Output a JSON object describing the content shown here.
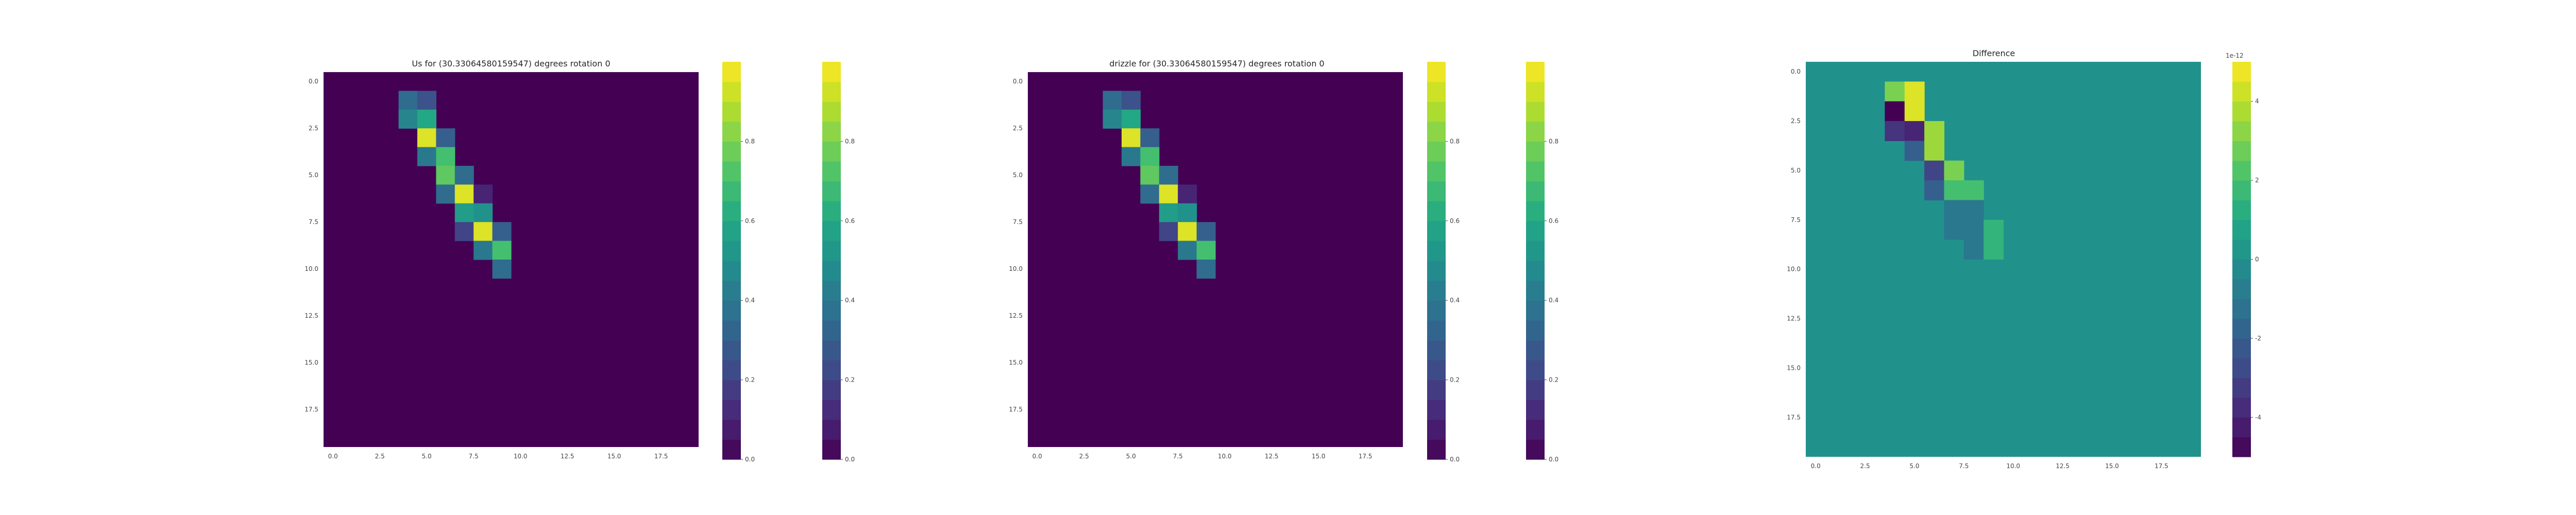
{
  "figure": {
    "panel_titles": [
      "Us for (30.33064580159547) degrees rotation 0",
      "drizzle for (30.33064580159547) degrees rotation 0",
      "Difference"
    ],
    "xtick_labels": [
      "0.0",
      "2.5",
      "5.0",
      "7.5",
      "10.0",
      "12.5",
      "15.0",
      "17.5"
    ],
    "ytick_labels": [
      "0.0",
      "2.5",
      "5.0",
      "7.5",
      "10.0",
      "12.5",
      "15.0",
      "17.5"
    ],
    "colorbar_ticks_main": [
      "0.0",
      "0.2",
      "0.4",
      "0.6",
      "0.8"
    ],
    "colorbar_ticks_diff": [
      "-4",
      "-2",
      "0",
      "2",
      "4"
    ],
    "colorbar_diff_exponent": "1e-12"
  },
  "colors": {
    "background": "#ffffff",
    "colormap": "viridis"
  },
  "chart_data": [
    {
      "type": "heatmap",
      "title": "Us for (30.33064580159547) degrees rotation 0",
      "grid_shape": [
        20,
        20
      ],
      "xlim": [
        -0.5,
        19.5
      ],
      "ylim": [
        19.5,
        -0.5
      ],
      "background_value": 0,
      "cells": [
        {
          "row": 1,
          "col": 4,
          "value": 0.35
        },
        {
          "row": 1,
          "col": 5,
          "value": 0.25
        },
        {
          "row": 2,
          "col": 4,
          "value": 0.45
        },
        {
          "row": 2,
          "col": 5,
          "value": 0.6
        },
        {
          "row": 3,
          "col": 5,
          "value": 0.95
        },
        {
          "row": 3,
          "col": 6,
          "value": 0.3
        },
        {
          "row": 4,
          "col": 5,
          "value": 0.4
        },
        {
          "row": 4,
          "col": 6,
          "value": 0.7
        },
        {
          "row": 5,
          "col": 6,
          "value": 0.75
        },
        {
          "row": 5,
          "col": 7,
          "value": 0.35
        },
        {
          "row": 6,
          "col": 6,
          "value": 0.35
        },
        {
          "row": 6,
          "col": 7,
          "value": 0.95
        },
        {
          "row": 6,
          "col": 8,
          "value": 0.1
        },
        {
          "row": 7,
          "col": 7,
          "value": 0.55
        },
        {
          "row": 7,
          "col": 8,
          "value": 0.5
        },
        {
          "row": 8,
          "col": 7,
          "value": 0.2
        },
        {
          "row": 8,
          "col": 8,
          "value": 0.95
        },
        {
          "row": 8,
          "col": 9,
          "value": 0.3
        },
        {
          "row": 9,
          "col": 8,
          "value": 0.4
        },
        {
          "row": 9,
          "col": 9,
          "value": 0.7
        },
        {
          "row": 10,
          "col": 9,
          "value": 0.35
        }
      ],
      "colorbar_ticks": [
        0.0,
        0.2,
        0.4,
        0.6,
        0.8
      ],
      "clim": [
        0,
        1
      ]
    },
    {
      "type": "heatmap",
      "title": "drizzle for (30.33064580159547) degrees rotation 0",
      "grid_shape": [
        20,
        20
      ],
      "xlim": [
        -0.5,
        19.5
      ],
      "ylim": [
        19.5,
        -0.5
      ],
      "background_value": 0,
      "cells": [
        {
          "row": 1,
          "col": 4,
          "value": 0.35
        },
        {
          "row": 1,
          "col": 5,
          "value": 0.25
        },
        {
          "row": 2,
          "col": 4,
          "value": 0.45
        },
        {
          "row": 2,
          "col": 5,
          "value": 0.6
        },
        {
          "row": 3,
          "col": 5,
          "value": 0.95
        },
        {
          "row": 3,
          "col": 6,
          "value": 0.3
        },
        {
          "row": 4,
          "col": 5,
          "value": 0.4
        },
        {
          "row": 4,
          "col": 6,
          "value": 0.7
        },
        {
          "row": 5,
          "col": 6,
          "value": 0.75
        },
        {
          "row": 5,
          "col": 7,
          "value": 0.35
        },
        {
          "row": 6,
          "col": 6,
          "value": 0.35
        },
        {
          "row": 6,
          "col": 7,
          "value": 0.95
        },
        {
          "row": 6,
          "col": 8,
          "value": 0.1
        },
        {
          "row": 7,
          "col": 7,
          "value": 0.55
        },
        {
          "row": 7,
          "col": 8,
          "value": 0.5
        },
        {
          "row": 8,
          "col": 7,
          "value": 0.2
        },
        {
          "row": 8,
          "col": 8,
          "value": 0.95
        },
        {
          "row": 8,
          "col": 9,
          "value": 0.3
        },
        {
          "row": 9,
          "col": 8,
          "value": 0.4
        },
        {
          "row": 9,
          "col": 9,
          "value": 0.7
        },
        {
          "row": 10,
          "col": 9,
          "value": 0.35
        }
      ],
      "colorbar_ticks": [
        0.0,
        0.2,
        0.4,
        0.6,
        0.8
      ],
      "clim": [
        0,
        1
      ]
    },
    {
      "type": "heatmap",
      "title": "Difference",
      "grid_shape": [
        20,
        20
      ],
      "xlim": [
        -0.5,
        19.5
      ],
      "ylim": [
        19.5,
        -0.5
      ],
      "background_value": 0,
      "value_multiplier": "1e-12",
      "cells": [
        {
          "row": 1,
          "col": 4,
          "value": 3.0
        },
        {
          "row": 1,
          "col": 5,
          "value": 4.5
        },
        {
          "row": 2,
          "col": 4,
          "value": -5.0
        },
        {
          "row": 2,
          "col": 5,
          "value": 4.5
        },
        {
          "row": 3,
          "col": 4,
          "value": -3.5
        },
        {
          "row": 3,
          "col": 5,
          "value": -4.0
        },
        {
          "row": 3,
          "col": 6,
          "value": 3.5
        },
        {
          "row": 4,
          "col": 5,
          "value": -2.0
        },
        {
          "row": 4,
          "col": 6,
          "value": 3.5
        },
        {
          "row": 5,
          "col": 6,
          "value": -3.0
        },
        {
          "row": 5,
          "col": 7,
          "value": 3.0
        },
        {
          "row": 6,
          "col": 6,
          "value": -2.0
        },
        {
          "row": 6,
          "col": 7,
          "value": 2.0
        },
        {
          "row": 6,
          "col": 8,
          "value": 2.0
        },
        {
          "row": 7,
          "col": 7,
          "value": -1.0
        },
        {
          "row": 7,
          "col": 8,
          "value": -1.0
        },
        {
          "row": 8,
          "col": 7,
          "value": -1.0
        },
        {
          "row": 8,
          "col": 8,
          "value": -1.0
        },
        {
          "row": 8,
          "col": 9,
          "value": 1.5
        },
        {
          "row": 9,
          "col": 8,
          "value": -1.0
        },
        {
          "row": 9,
          "col": 9,
          "value": 1.5
        }
      ],
      "colorbar_ticks": [
        -4,
        -2,
        0,
        2,
        4
      ],
      "clim": [
        -5,
        5
      ]
    }
  ]
}
